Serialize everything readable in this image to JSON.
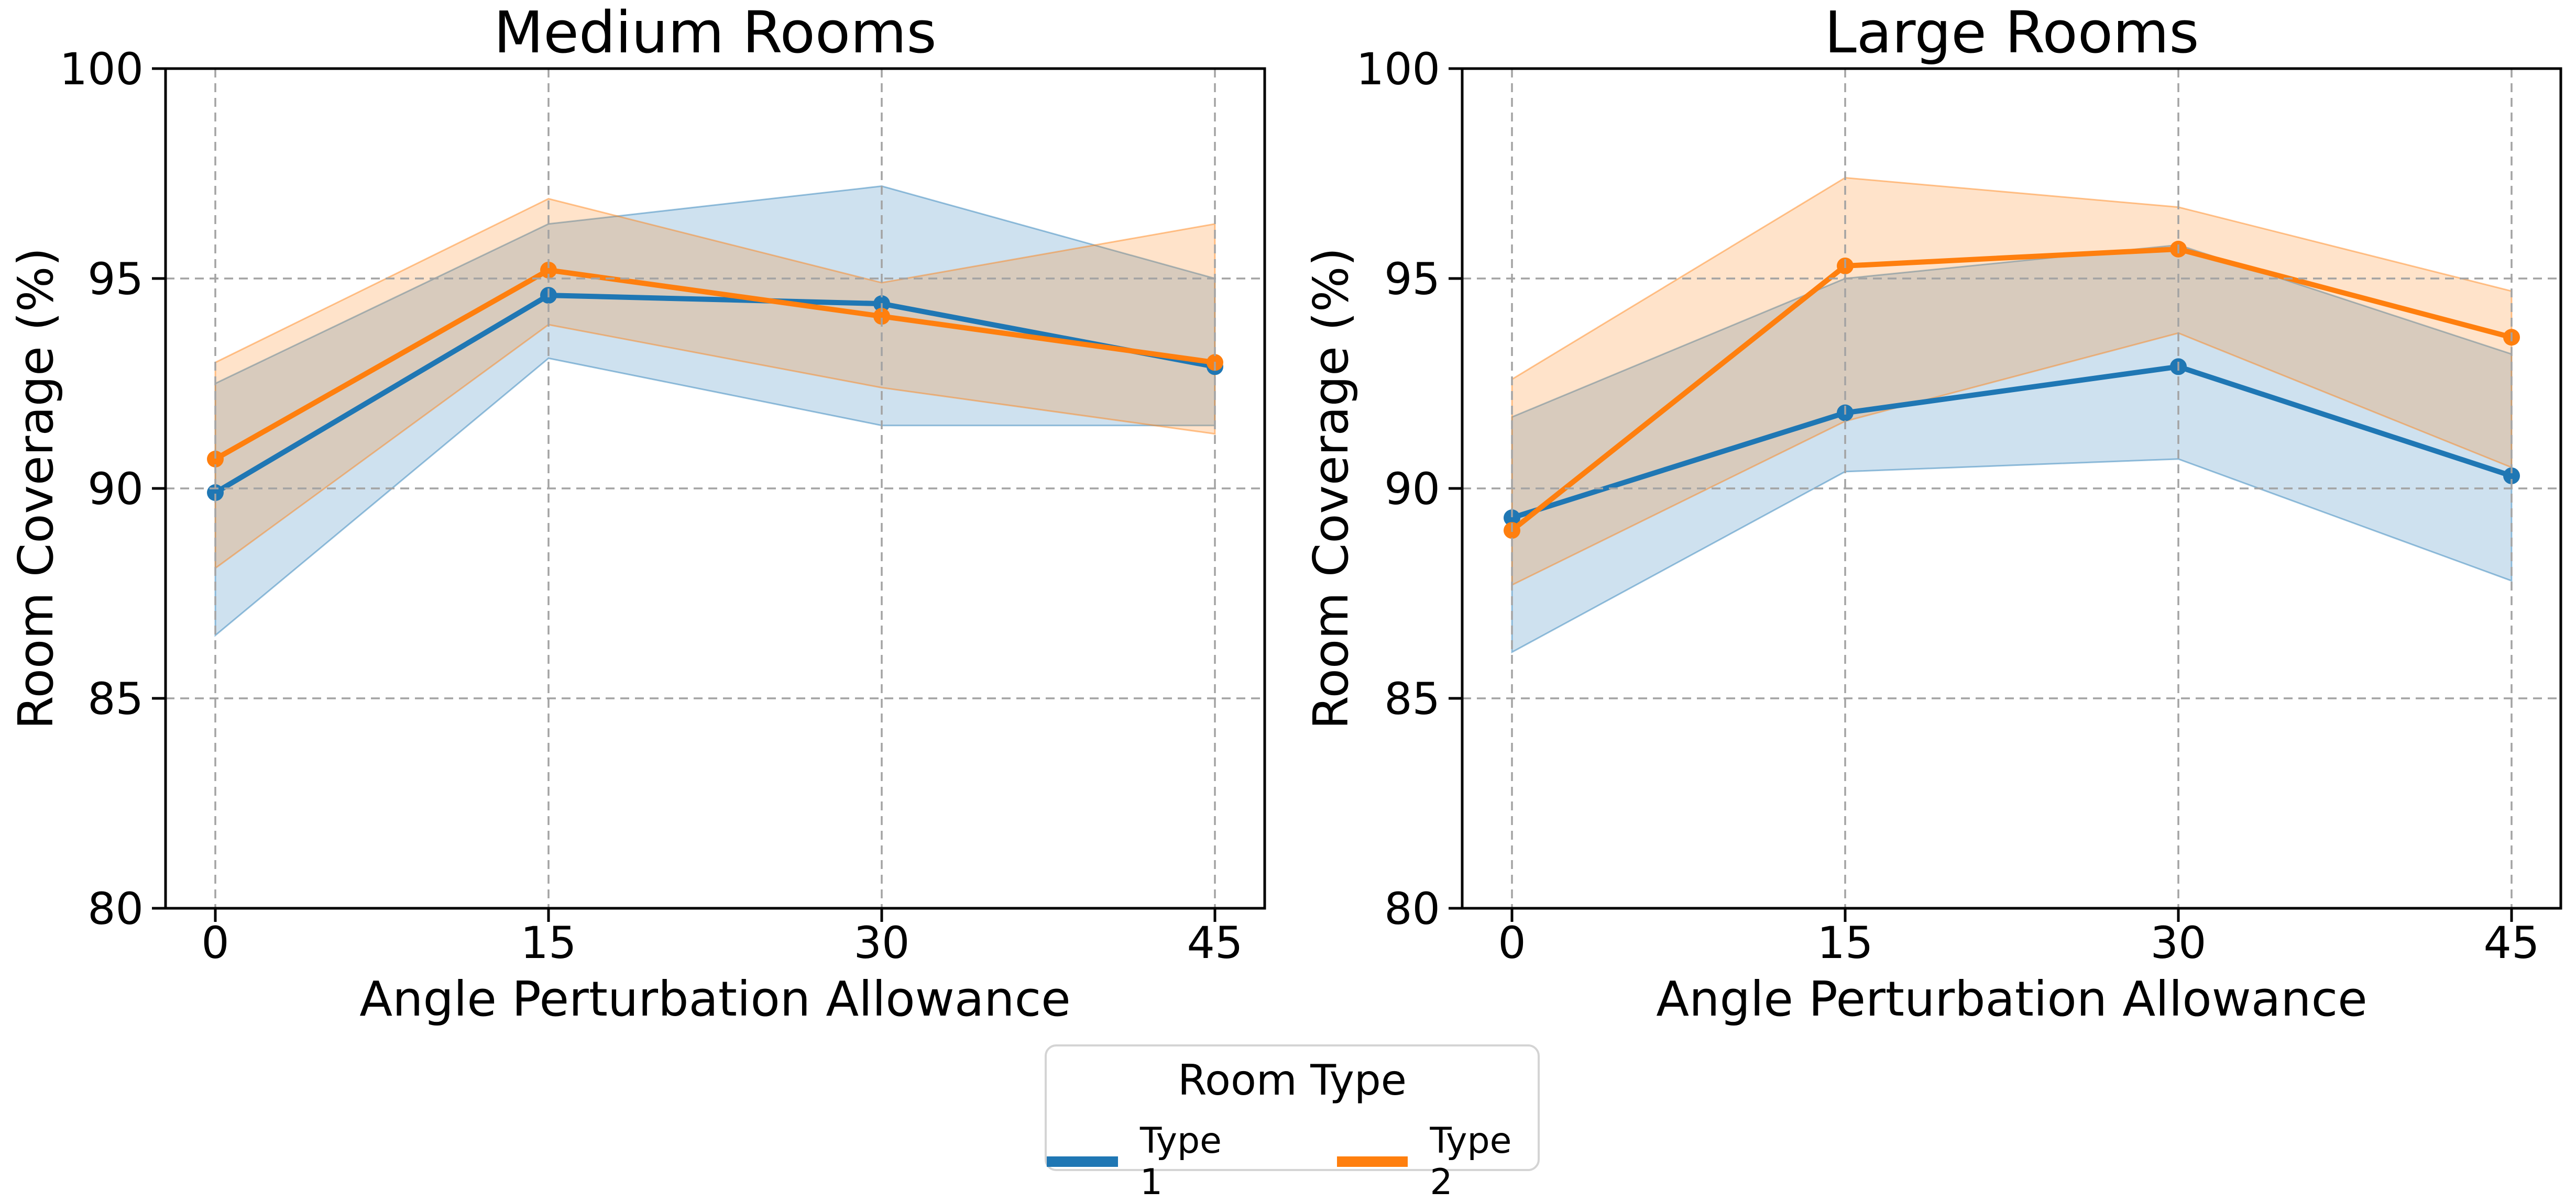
{
  "figure": {
    "legend": {
      "title": "Room Type",
      "entries": [
        {
          "label": "Type 1",
          "color": "#1f77b4"
        },
        {
          "label": "Type 2",
          "color": "#ff7f0e"
        }
      ]
    }
  },
  "chart_data": [
    {
      "type": "line",
      "title": "Medium Rooms",
      "xlabel": "Angle Perturbation Allowance",
      "ylabel": "Room Coverage (%)",
      "x": [
        0,
        15,
        30,
        45
      ],
      "xticks": [
        "0",
        "15",
        "30",
        "45"
      ],
      "yticks": [
        "80",
        "85",
        "90",
        "95",
        "100"
      ],
      "ylim": [
        80,
        100
      ],
      "grid": "dashed, gray, drawn above data",
      "band_style": "shaded confidence band, fill alpha ~0.22",
      "series": [
        {
          "name": "Type 1",
          "color": "#1f77b4",
          "values": [
            89.9,
            94.6,
            94.4,
            92.9
          ],
          "band_low": [
            86.5,
            93.1,
            91.5,
            91.5
          ],
          "band_high": [
            92.5,
            96.3,
            97.2,
            95.0
          ]
        },
        {
          "name": "Type 2",
          "color": "#ff7f0e",
          "values": [
            90.7,
            95.2,
            94.1,
            93.0
          ],
          "band_low": [
            88.1,
            93.9,
            92.4,
            91.3
          ],
          "band_high": [
            93.0,
            96.9,
            94.9,
            96.3
          ]
        }
      ]
    },
    {
      "type": "line",
      "title": "Large Rooms",
      "xlabel": "Angle Perturbation Allowance",
      "ylabel": "Room Coverage (%)",
      "x": [
        0,
        15,
        30,
        45
      ],
      "xticks": [
        "0",
        "15",
        "30",
        "45"
      ],
      "yticks": [
        "80",
        "85",
        "90",
        "95",
        "100"
      ],
      "ylim": [
        80,
        100
      ],
      "grid": "dashed, gray, drawn above data",
      "band_style": "shaded confidence band, fill alpha ~0.22",
      "series": [
        {
          "name": "Type 1",
          "color": "#1f77b4",
          "values": [
            89.3,
            91.8,
            92.9,
            90.3
          ],
          "band_low": [
            86.1,
            90.4,
            90.7,
            87.8
          ],
          "band_high": [
            91.7,
            95.0,
            95.8,
            93.2
          ]
        },
        {
          "name": "Type 2",
          "color": "#ff7f0e",
          "values": [
            89.0,
            95.3,
            95.7,
            93.6
          ],
          "band_low": [
            87.7,
            91.6,
            93.7,
            90.5
          ],
          "band_high": [
            92.6,
            97.4,
            96.7,
            94.7
          ]
        }
      ]
    }
  ]
}
